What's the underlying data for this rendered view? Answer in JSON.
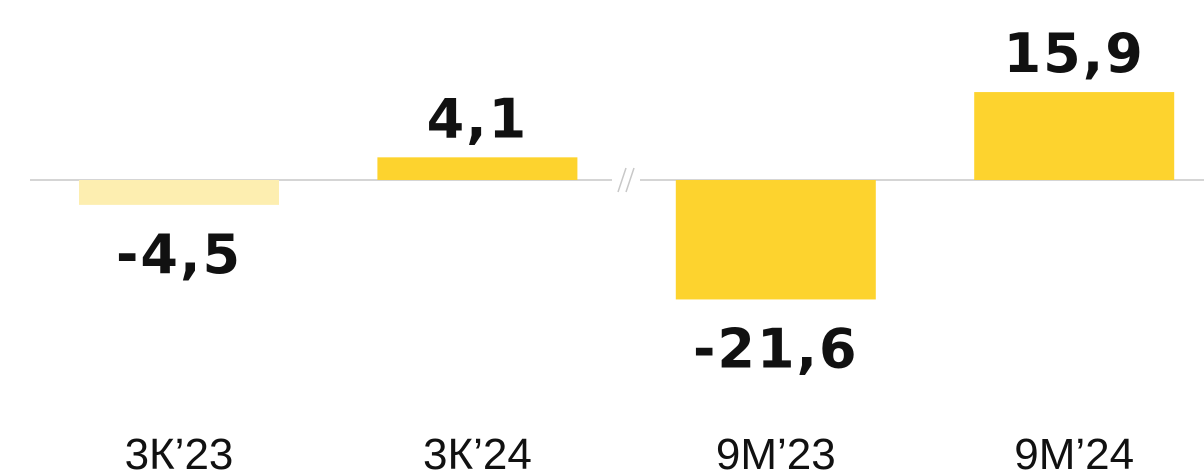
{
  "chart_data": {
    "type": "bar",
    "categories": [
      "3К’23",
      "3К’24",
      "9М’23",
      "9М’24"
    ],
    "values": [
      -4.5,
      4.1,
      -21.6,
      15.9
    ],
    "value_labels": [
      "-4,5",
      "4,1",
      "-21,6",
      "15,9"
    ],
    "colors": [
      "#fdeeb0",
      "#fdd32e",
      "#fdd32e",
      "#fdd32e"
    ]
  }
}
